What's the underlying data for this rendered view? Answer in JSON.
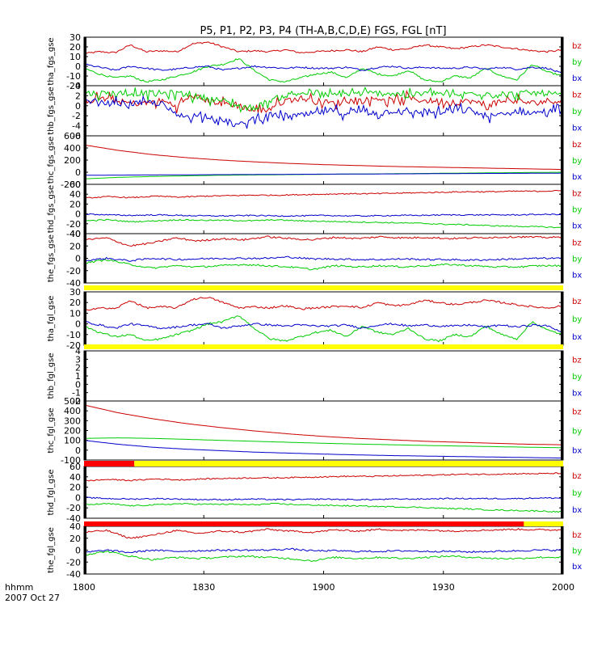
{
  "title": "P5, P1, P2, P3, P4 (TH-A,B,C,D,E) FGS, FGL [nT]",
  "time_label": "hhmm",
  "date_label": "2007 Oct 27",
  "colors": {
    "bz": "#cc0000",
    "by": "#00cc00",
    "bx": "#0000cc",
    "flag_yellow": "#ffff00",
    "flag_red": "#ff0000"
  },
  "chart_data": {
    "type": "line",
    "x_ticks": [
      "1800",
      "1830",
      "1900",
      "1930",
      "2000"
    ],
    "x_range": [
      "18:00",
      "20:00"
    ],
    "panels": [
      {
        "ylabel": "tha_fgs_gse",
        "ylim": [
          -20,
          30
        ],
        "yticks": [
          30,
          20,
          10,
          0,
          -10,
          -20
        ],
        "series": [
          {
            "name": "bz",
            "style": "noisy",
            "values": [
              13,
              15,
              14,
              22,
              15,
              16,
              15,
              23,
              25,
              20,
              15,
              16,
              15,
              17,
              14,
              15,
              16,
              17,
              15,
              20,
              17,
              18,
              22,
              20,
              18,
              20,
              22,
              20,
              18,
              16,
              15,
              17
            ]
          },
          {
            "name": "by",
            "style": "noisy",
            "values": [
              -2,
              -8,
              -12,
              -10,
              -16,
              -14,
              -10,
              -6,
              0,
              2,
              8,
              -4,
              -14,
              -16,
              -12,
              -8,
              -6,
              -12,
              -2,
              -8,
              -10,
              -4,
              -14,
              -16,
              -10,
              -12,
              -2,
              -10,
              -14,
              2,
              -6,
              -10
            ]
          },
          {
            "name": "bx",
            "style": "noisy",
            "values": [
              2,
              -1,
              -4,
              0,
              -2,
              -4,
              -3,
              -1,
              0,
              -4,
              -2,
              0,
              -1,
              -2,
              -1,
              -2,
              -2,
              -1,
              -4,
              -1,
              0,
              -2,
              -1,
              -2,
              -2,
              -1,
              -3,
              -1,
              -3,
              -1,
              -2,
              -8
            ]
          }
        ]
      },
      {
        "ylabel": "thb_fgs_gse",
        "ylim": [
          -6,
          4
        ],
        "yticks": [
          4,
          2,
          0,
          -2,
          -4,
          -6
        ],
        "series": [
          {
            "name": "bz",
            "style": "spiky",
            "values": [
              1,
              1.5,
              1,
              0.5,
              0.5,
              1,
              0,
              2,
              1,
              0.5,
              0,
              -1,
              -0.5,
              1,
              1.5,
              1,
              0.5,
              1,
              1,
              1.5,
              1,
              1.5,
              1,
              1,
              0.5,
              1,
              0,
              1,
              1,
              0.5,
              1,
              1
            ]
          },
          {
            "name": "by",
            "style": "spiky",
            "values": [
              2.5,
              2.5,
              2.5,
              2.5,
              2.5,
              2.5,
              2.5,
              2,
              1.5,
              1,
              0,
              -0.5,
              1,
              2,
              2.5,
              2.5,
              2,
              2.5,
              2.5,
              2.5,
              2.5,
              2,
              2.5,
              2.5,
              2,
              2.5,
              2.5,
              2,
              2.5,
              2.5,
              2.5,
              2
            ]
          },
          {
            "name": "bx",
            "style": "spiky",
            "values": [
              1,
              0.5,
              0.5,
              0.5,
              0.5,
              0.5,
              -2,
              -2,
              -2,
              -3,
              -4,
              -2.5,
              -2,
              -2,
              -2,
              -1.5,
              -1,
              -1.5,
              -1,
              -1.5,
              -1,
              -1.5,
              -1,
              -1.5,
              -1,
              -1,
              -2,
              -2,
              -1,
              -1.5,
              -1,
              -1
            ]
          }
        ]
      },
      {
        "ylabel": "thc_fgs_gse",
        "ylim": [
          -200,
          600
        ],
        "yticks": [
          600,
          400,
          200,
          0,
          -200
        ],
        "series": [
          {
            "name": "bz",
            "style": "smooth",
            "values": [
              450,
              360,
              290,
              240,
              200,
              170,
              145,
              125,
              110,
              95,
              85,
              75,
              65,
              55,
              45
            ]
          },
          {
            "name": "by",
            "style": "smooth",
            "values": [
              -110,
              -85,
              -70,
              -60,
              -50,
              -45,
              -40,
              -35,
              -30,
              -25,
              -20,
              -15,
              -10,
              -5,
              0
            ]
          },
          {
            "name": "bx",
            "style": "smooth",
            "values": [
              -50,
              -48,
              -45,
              -43,
              -40,
              -38,
              -35,
              -32,
              -30,
              -28,
              -25,
              -22,
              -20,
              -18,
              -15
            ]
          }
        ]
      },
      {
        "ylabel": "thd_fgs_gse",
        "ylim": [
          -40,
          60
        ],
        "yticks": [
          60,
          40,
          20,
          0,
          -20,
          -40
        ],
        "series": [
          {
            "name": "bz",
            "style": "wavy",
            "values": [
              32,
              35,
              33,
              36,
              34,
              36,
              37,
              38,
              38,
              39,
              40,
              41,
              41,
              42,
              43,
              44,
              45,
              45,
              46,
              46,
              47
            ]
          },
          {
            "name": "by",
            "style": "wavy",
            "values": [
              -14,
              -12,
              -16,
              -14,
              -12,
              -13,
              -13,
              -14,
              -12,
              -14,
              -15,
              -16,
              -17,
              -18,
              -19,
              -21,
              -22,
              -24,
              -25,
              -26,
              -28
            ]
          },
          {
            "name": "bx",
            "style": "wavy",
            "values": [
              0,
              -2,
              -3,
              -2,
              -3,
              -4,
              -4,
              -3,
              -4,
              -4,
              -3,
              -4,
              -4,
              -3,
              -3,
              -2,
              -2,
              -2,
              -2,
              -1,
              -1
            ]
          }
        ]
      },
      {
        "ylabel": "the_fgs_gse",
        "ylim": [
          -40,
          40
        ],
        "yticks": [
          40,
          20,
          0,
          -20,
          -40
        ],
        "series": [
          {
            "name": "bz",
            "style": "noisy",
            "values": [
              30,
              33,
              20,
              25,
              33,
              28,
              32,
              30,
              35,
              32,
              30,
              34,
              32,
              35,
              33,
              34,
              32,
              33,
              34,
              35,
              34,
              34
            ]
          },
          {
            "name": "by",
            "style": "noisy",
            "values": [
              -8,
              -2,
              -10,
              -16,
              -12,
              -14,
              -12,
              -10,
              -12,
              -14,
              -18,
              -12,
              -14,
              -12,
              -14,
              -12,
              -10,
              -12,
              -14,
              -14,
              -12,
              -12
            ]
          },
          {
            "name": "bx",
            "style": "noisy",
            "values": [
              -4,
              0,
              -4,
              0,
              -2,
              -1,
              0,
              0,
              0,
              2,
              -1,
              -1,
              -2,
              -2,
              -1,
              -2,
              -2,
              -3,
              -2,
              -1,
              0,
              0
            ]
          }
        ]
      },
      {
        "ylabel": "tha_fgl_gse",
        "ylim": [
          -20,
          30
        ],
        "yticks": [
          30,
          20,
          10,
          0,
          -10,
          -20
        ],
        "series": [
          {
            "name": "bz",
            "style": "noisy",
            "values": [
              13,
              15,
              14,
              22,
              15,
              16,
              15,
              23,
              25,
              20,
              15,
              16,
              15,
              17,
              14,
              15,
              16,
              17,
              15,
              20,
              17,
              18,
              22,
              20,
              18,
              20,
              22,
              20,
              18,
              16,
              15,
              17
            ]
          },
          {
            "name": "by",
            "style": "noisy",
            "values": [
              -2,
              -8,
              -12,
              -10,
              -16,
              -14,
              -10,
              -6,
              0,
              2,
              8,
              -4,
              -14,
              -16,
              -12,
              -8,
              -6,
              -12,
              -2,
              -8,
              -10,
              -4,
              -14,
              -16,
              -10,
              -12,
              -2,
              -10,
              -14,
              2,
              -6,
              -10
            ]
          },
          {
            "name": "bx",
            "style": "noisy",
            "values": [
              2,
              -1,
              -4,
              0,
              -2,
              -4,
              -3,
              -1,
              0,
              -4,
              -2,
              0,
              -1,
              -2,
              -1,
              -2,
              -2,
              -1,
              -4,
              -1,
              0,
              -2,
              -1,
              -2,
              -2,
              -1,
              -3,
              -1,
              -3,
              -1,
              -2,
              -8
            ]
          }
        ]
      },
      {
        "ylabel": "thb_fgl_gse",
        "ylim": [
          -2,
          4
        ],
        "yticks": [
          4,
          3,
          2,
          1,
          0,
          -1,
          -2
        ],
        "series": []
      },
      {
        "ylabel": "thc_fgl_gse",
        "ylim": [
          -100,
          500
        ],
        "yticks": [
          500,
          400,
          300,
          200,
          100,
          0,
          -100
        ],
        "series": [
          {
            "name": "bz",
            "style": "smooth",
            "values": [
              460,
              380,
              320,
              270,
              230,
              195,
              165,
              140,
              120,
              105,
              90,
              80,
              70,
              60,
              55
            ]
          },
          {
            "name": "by",
            "style": "smooth",
            "values": [
              120,
              125,
              120,
              110,
              100,
              90,
              80,
              70,
              62,
              55,
              48,
              42,
              36,
              30,
              25
            ]
          },
          {
            "name": "bx",
            "style": "smooth",
            "values": [
              100,
              60,
              30,
              10,
              -5,
              -20,
              -30,
              -40,
              -48,
              -55,
              -60,
              -65,
              -70,
              -75,
              -80
            ]
          }
        ]
      },
      {
        "ylabel": "thd_fgl_gse",
        "ylim": [
          -40,
          60
        ],
        "yticks": [
          60,
          40,
          20,
          0,
          -20,
          -40
        ],
        "series": [
          {
            "name": "bz",
            "style": "wavy",
            "values": [
              32,
              35,
              33,
              36,
              34,
              36,
              37,
              38,
              38,
              39,
              40,
              41,
              41,
              42,
              43,
              44,
              45,
              45,
              46,
              46,
              47
            ]
          },
          {
            "name": "by",
            "style": "wavy",
            "values": [
              -14,
              -12,
              -16,
              -14,
              -12,
              -13,
              -13,
              -14,
              -12,
              -14,
              -15,
              -16,
              -17,
              -18,
              -19,
              -21,
              -22,
              -24,
              -25,
              -26,
              -28
            ]
          },
          {
            "name": "bx",
            "style": "wavy",
            "values": [
              0,
              -2,
              -3,
              -2,
              -3,
              -4,
              -4,
              -3,
              -4,
              -4,
              -3,
              -4,
              -4,
              -3,
              -3,
              -2,
              -2,
              -2,
              -2,
              -1,
              -1
            ]
          }
        ]
      },
      {
        "ylabel": "the_fgl_gse",
        "ylim": [
          -40,
          40
        ],
        "yticks": [
          40,
          20,
          0,
          -20,
          -40
        ],
        "series": [
          {
            "name": "bz",
            "style": "noisy",
            "values": [
              30,
              33,
              20,
              25,
              33,
              28,
              32,
              30,
              35,
              32,
              30,
              34,
              32,
              35,
              33,
              34,
              32,
              33,
              34,
              35,
              34,
              34
            ]
          },
          {
            "name": "by",
            "style": "noisy",
            "values": [
              -8,
              -2,
              -10,
              -16,
              -12,
              -14,
              -12,
              -10,
              -12,
              -14,
              -18,
              -12,
              -14,
              -12,
              -14,
              -12,
              -10,
              -12,
              -14,
              -14,
              -12,
              -12
            ]
          },
          {
            "name": "bx",
            "style": "noisy",
            "values": [
              -4,
              0,
              -4,
              0,
              -2,
              -1,
              0,
              0,
              0,
              2,
              -1,
              -1,
              -2,
              -2,
              -1,
              -2,
              -2,
              -3,
              -2,
              -1,
              0,
              0
            ]
          }
        ]
      }
    ],
    "flag_bars": [
      {
        "after_panel": 4,
        "segments": [
          {
            "color": "flag_yellow",
            "from": 0,
            "to": 1
          }
        ]
      },
      {
        "after_panel": 5,
        "segments": [
          {
            "color": "flag_yellow",
            "from": 0,
            "to": 1
          }
        ]
      },
      {
        "after_panel": 7,
        "segments": [
          {
            "color": "flag_red",
            "from": 0,
            "to": 0.105
          },
          {
            "color": "flag_yellow",
            "from": 0.105,
            "to": 1
          }
        ]
      },
      {
        "after_panel": 8,
        "segments": [
          {
            "color": "flag_red",
            "from": 0,
            "to": 0.918
          },
          {
            "color": "flag_yellow",
            "from": 0.918,
            "to": 1
          }
        ]
      }
    ]
  }
}
